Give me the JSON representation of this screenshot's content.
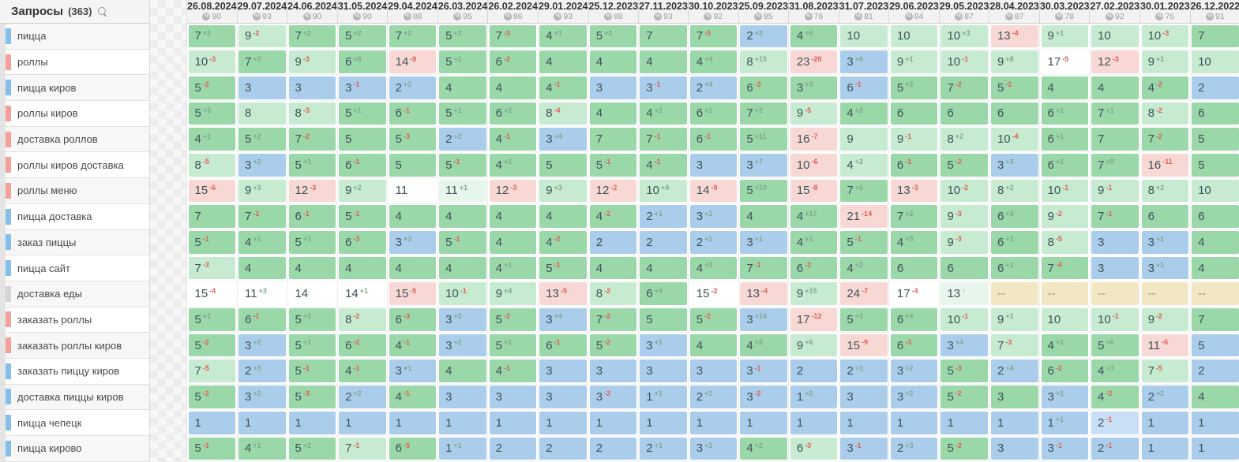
{
  "sidebar": {
    "title": "Запросы",
    "count": "(363)",
    "search_icon": "magnifier-icon"
  },
  "columns": [
    {
      "date": "26.08.2024",
      "freq": "90"
    },
    {
      "date": "29.07.2024",
      "freq": "93"
    },
    {
      "date": "24.06.2024",
      "freq": "90"
    },
    {
      "date": "31.05.2024",
      "freq": "90"
    },
    {
      "date": "29.04.2024",
      "freq": "88"
    },
    {
      "date": "26.03.2024",
      "freq": "95"
    },
    {
      "date": "26.02.2024",
      "freq": "86"
    },
    {
      "date": "29.01.2024",
      "freq": "93"
    },
    {
      "date": "25.12.2023",
      "freq": "88"
    },
    {
      "date": "27.11.2023",
      "freq": "93"
    },
    {
      "date": "30.10.2023",
      "freq": "92"
    },
    {
      "date": "25.09.2023",
      "freq": "85"
    },
    {
      "date": "31.08.2023",
      "freq": "76"
    },
    {
      "date": "31.07.2023",
      "freq": "81"
    },
    {
      "date": "29.06.2023",
      "freq": "84"
    },
    {
      "date": "29.05.2023",
      "freq": "87"
    },
    {
      "date": "28.04.2023",
      "freq": "87"
    },
    {
      "date": "30.03.2023",
      "freq": "78"
    },
    {
      "date": "27.02.2023",
      "freq": "92"
    },
    {
      "date": "30.01.2023",
      "freq": "76"
    },
    {
      "date": "26.12.2022",
      "freq": "91"
    }
  ],
  "rows": [
    {
      "query": "пицца",
      "marker": "blue",
      "cells": [
        "7|+2|g",
        "9|-2|lg",
        "7|+2|g",
        "5|+2|g",
        "7|+2|g",
        "5|+2|g",
        "7|-3|g",
        "4|+1|g",
        "5|+2|g",
        "7||g",
        "7|-5|g",
        "2|+2|b",
        "4|+6|g",
        "10||lg",
        "10||lg",
        "10|+3|lg",
        "13|-4|p",
        "9|+1|lg",
        "10||lg",
        "10|-3|lg",
        "7||g"
      ]
    },
    {
      "query": "роллы",
      "marker": "pink",
      "cells": [
        "10|-3|lg",
        "7|+2|g",
        "9|-3|lg",
        "6|+8|g",
        "14|-9|p",
        "5|+1|g",
        "6|-2|g",
        "4||g",
        "4||g",
        "4||g",
        "4|+4|g",
        "8|+15|lg",
        "23|-20|p",
        "3|+6|b",
        "9|+1|lg",
        "10|-1|lg",
        "9|+8|lg",
        "17|-5|w",
        "12|-3|p",
        "9|+1|lg",
        "10||lg"
      ]
    },
    {
      "query": "пицца киров",
      "marker": "blue",
      "cells": [
        "5|-2|g",
        "3||b",
        "3||b",
        "3|-1|b",
        "2|+2|b",
        "4||g",
        "4||g",
        "4|-1|g",
        "3||b",
        "3|-1|b",
        "2|+4|b",
        "6|-3|g",
        "3|+3|g",
        "6|-1|b",
        "5|+2|g",
        "7|-2|g",
        "5|-1|g",
        "4||g",
        "4||g",
        "4|-2|g",
        "2||b"
      ]
    },
    {
      "query": "роллы киров",
      "marker": "pink",
      "cells": [
        "5|+3|g",
        "8||lg",
        "8|-3|lg",
        "5|+1|g",
        "6|-1|g",
        "5|+1|g",
        "6|+2|g",
        "8|-4|lg",
        "4||g",
        "4|+2|g",
        "6|+1|g",
        "7|+2|g",
        "9|-5|lg",
        "4|+2|g",
        "6||g",
        "6||g",
        "6||g",
        "6|+1|g",
        "7|+1|g",
        "8|-2|lg",
        "6||g"
      ]
    },
    {
      "query": "доставка роллов",
      "marker": "pink",
      "cells": [
        "4|+1|g",
        "5|+2|g",
        "7|-2|g",
        "5||g",
        "5|-3|g",
        "2|+2|b",
        "4|-1|g",
        "3|+4|b",
        "7||g",
        "7|-1|g",
        "6|-1|g",
        "5|+11|g",
        "16|-7|p",
        "9||lg",
        "9|-1|lg",
        "8|+2|lg",
        "10|-4|lg",
        "6|+1|g",
        "7||g",
        "7|-2|g",
        "5||g"
      ]
    },
    {
      "query": "роллы киров доставка",
      "marker": "pink",
      "cells": [
        "8|-5|lg",
        "3|+2|b",
        "5|+1|g",
        "6|-1|g",
        "5||g",
        "5|-1|g",
        "4|+1|g",
        "5||g",
        "5|-1|g",
        "4|-1|g",
        "3||b",
        "3|+7|b",
        "10|-6|p",
        "4|+2|lg",
        "6|-1|g",
        "5|-2|g",
        "3|+3|b",
        "6|+1|g",
        "7|+9|g",
        "16|-11|p",
        "5||g"
      ]
    },
    {
      "query": "роллы меню",
      "marker": "pink",
      "cells": [
        "15|-6|p",
        "9|+3|lg",
        "12|-3|p",
        "9|+2|lg",
        "11||w",
        "11|+1|m",
        "12|-3|p",
        "9|+3|lg",
        "12|-2|p",
        "10|+4|lg",
        "14|-9|p",
        "5|+10|g",
        "15|-8|p",
        "7|+6|g",
        "13|-3|p",
        "10|-2|lg",
        "8|+2|lg",
        "10|-1|lg",
        "9|-1|lg",
        "8|+2|lg",
        "10||lg"
      ]
    },
    {
      "query": "пицца доставка",
      "marker": "blue",
      "cells": [
        "7||g",
        "7|-1|g",
        "6|-1|g",
        "5|-1|g",
        "4||g",
        "4||g",
        "4||g",
        "4||g",
        "4|-2|g",
        "2|+1|b",
        "3|+1|b",
        "4||g",
        "4|+17|g",
        "21|-14|p",
        "7|+2|g",
        "9|-3|lg",
        "6|+3|g",
        "9|-2|lg",
        "7|-1|g",
        "6||g",
        "6||g"
      ]
    },
    {
      "query": "заказ пиццы",
      "marker": "blue",
      "cells": [
        "5|-1|g",
        "4|+1|g",
        "5|+1|g",
        "6|-3|g",
        "3|+2|b",
        "5|-1|g",
        "4||g",
        "4|-2|g",
        "2||b",
        "2||b",
        "2|+1|b",
        "3|+1|b",
        "4|+1|g",
        "5|-1|g",
        "4|+5|g",
        "9|-3|lg",
        "6|+2|g",
        "8|-5|lg",
        "3||b",
        "3|+1|b",
        "4||g"
      ]
    },
    {
      "query": "пицца сайт",
      "marker": "blue",
      "cells": [
        "7|-3|lg",
        "4||g",
        "4||g",
        "4||g",
        "4||g",
        "4||g",
        "4|+1|g",
        "5|-1|g",
        "4||g",
        "4||g",
        "4|+3|g",
        "7|-1|g",
        "6|-2|g",
        "4|+2|g",
        "6||g",
        "6||g",
        "6|+1|g",
        "7|-4|g",
        "3||b",
        "3|+1|b",
        "4||g"
      ]
    },
    {
      "query": "доставка еды",
      "marker": "gray",
      "cells": [
        "15|-4|w",
        "11|+3|w",
        "14||w",
        "14|+1|w",
        "15|-5|p",
        "10|-1|lg",
        "9|+4|lg",
        "13|-5|p",
        "8|-2|lg",
        "6|+9|g",
        "15|-2|w",
        "13|-4|p",
        "9|+15|lg",
        "24|-7|p",
        "17|-4|w",
        "13|↑|m",
        "--||t",
        "--||t",
        "--||t",
        "--||t",
        "--||t"
      ]
    },
    {
      "query": "заказать роллы",
      "marker": "pink",
      "cells": [
        "5|+1|g",
        "6|-1|g",
        "5|+3|g",
        "8|-2|lg",
        "6|-3|g",
        "3|+2|b",
        "5|-2|g",
        "3|+4|b",
        "7|-2|g",
        "5||g",
        "5|-2|g",
        "3|+14|b",
        "17|-12|p",
        "5|+1|g",
        "6|+4|g",
        "10|-1|lg",
        "9|+1|lg",
        "10||lg",
        "10|-1|lg",
        "9|-2|lg",
        "7||g"
      ]
    },
    {
      "query": "заказать роллы киров",
      "marker": "pink",
      "cells": [
        "5|-2|g",
        "3|+2|b",
        "5|+1|g",
        "6|-2|g",
        "4|-1|g",
        "3|+2|b",
        "5|+1|g",
        "6|-1|g",
        "5|-2|g",
        "3|+1|b",
        "4||g",
        "4|+5|g",
        "9|+6|lg",
        "15|-9|p",
        "6|-3|g",
        "3|+4|b",
        "7|-3|lg",
        "4|+1|g",
        "5|+6|g",
        "11|-6|p",
        "5||b"
      ]
    },
    {
      "query": "заказать пиццу киров",
      "marker": "blue",
      "cells": [
        "7|-5|lg",
        "2|+3|b",
        "5|-1|g",
        "4|-1|g",
        "3|+1|b",
        "4||g",
        "4|-1|g",
        "3||b",
        "3||b",
        "3||b",
        "3||b",
        "3|-1|b",
        "2||b",
        "2|+1|b",
        "3|+2|b",
        "5|-3|g",
        "2|+4|b",
        "6|-2|g",
        "4|+3|g",
        "7|-5|lg",
        "2||b"
      ]
    },
    {
      "query": "доставка пиццы киров",
      "marker": "blue",
      "cells": [
        "5|-2|g",
        "3|+2|b",
        "5|-3|g",
        "2|+2|b",
        "4|-1|g",
        "3||b",
        "3||b",
        "3||b",
        "3|-2|b",
        "1|+1|b",
        "2|+1|b",
        "3|-2|b",
        "1|+2|b",
        "3||b",
        "3|+2|b",
        "5|-2|g",
        "3||g",
        "3|+1|b",
        "4|-2|g",
        "2|+2|b",
        "4||g"
      ]
    },
    {
      "query": "пицца чепецк",
      "marker": "blue",
      "cells": [
        "1||b",
        "1||b",
        "1||b",
        "1||b",
        "1||b",
        "1||b",
        "1||b",
        "1||b",
        "1||b",
        "1||b",
        "1||b",
        "1||b",
        "1||b",
        "1||b",
        "1||b",
        "1||b",
        "1||b",
        "1|+1|b",
        "2|-1|lb",
        "1||b",
        "1||b"
      ]
    },
    {
      "query": "пицца кирово",
      "marker": "blue",
      "cells": [
        "5|-1|g",
        "4|+1|g",
        "5|+2|g",
        "7|-1|lg",
        "6|-5|g",
        "1|+1|b",
        "2||b",
        "2||b",
        "2||b",
        "2|+1|b",
        "3|+1|b",
        "4|+2|g",
        "6|-3|lg",
        "3|-1|b",
        "2|+3|b",
        "5|-2|g",
        "3||b",
        "3|-1|b",
        "2|-1|b",
        "1||b",
        "1||b"
      ]
    }
  ]
}
